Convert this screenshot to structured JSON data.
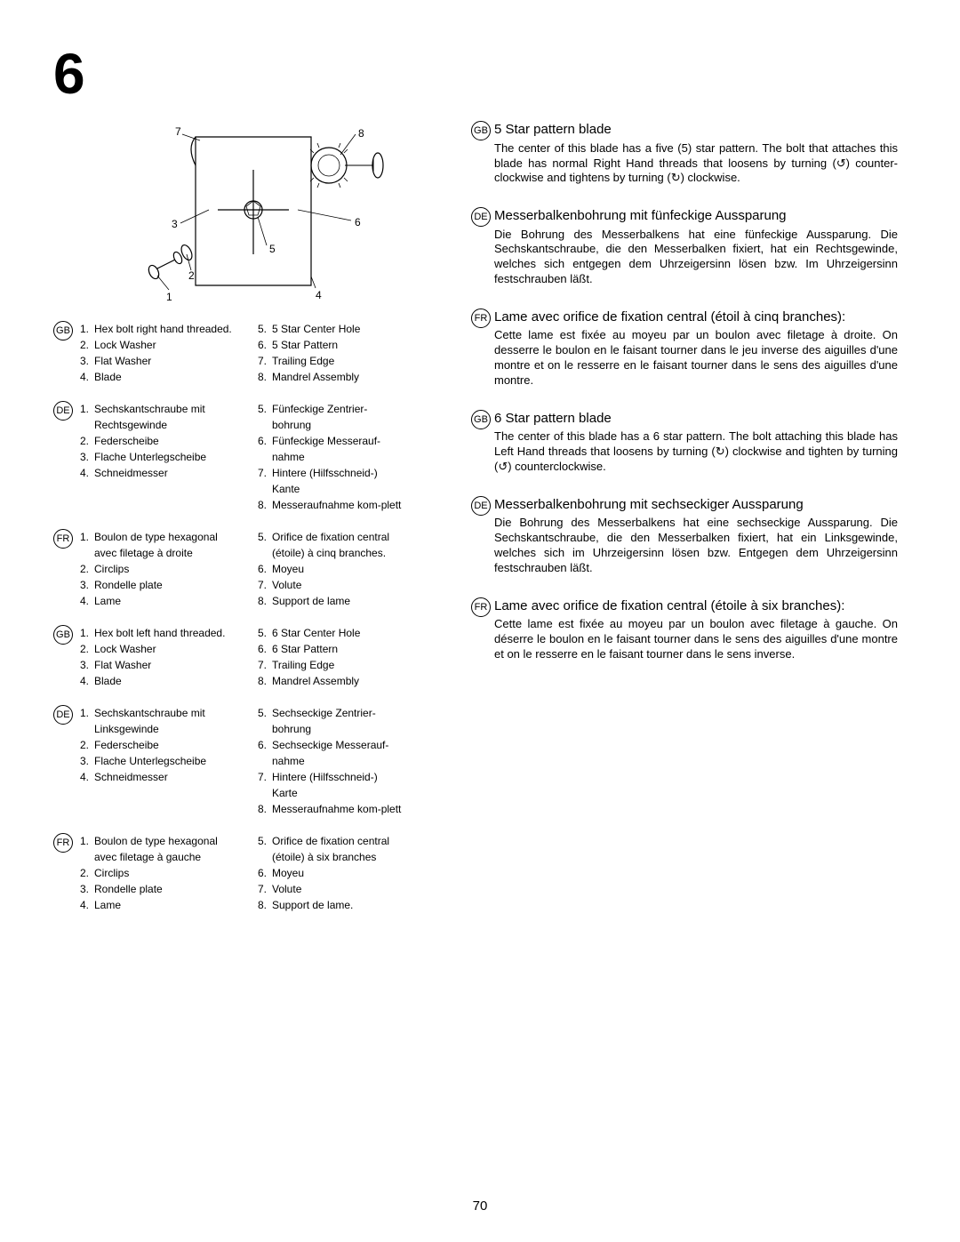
{
  "page_number": "70",
  "chapter_number": "6",
  "diagram": {
    "callouts": [
      "1",
      "2",
      "3",
      "4",
      "5",
      "6",
      "7",
      "8"
    ]
  },
  "parts_lists": [
    {
      "lang": "GB",
      "col_a": [
        {
          "n": "1.",
          "t": "Hex bolt right hand threaded."
        },
        {
          "n": "2.",
          "t": "Lock Washer"
        },
        {
          "n": "3.",
          "t": "Flat Washer"
        },
        {
          "n": "4.",
          "t": "Blade"
        }
      ],
      "col_b": [
        {
          "n": "5.",
          "t": "5 Star Center Hole"
        },
        {
          "n": "6.",
          "t": "5 Star Pattern"
        },
        {
          "n": "7.",
          "t": "Trailing Edge"
        },
        {
          "n": "8.",
          "t": "Mandrel Assembly"
        }
      ]
    },
    {
      "lang": "DE",
      "col_a": [
        {
          "n": "1.",
          "t": "Sechskantschraube mit Rechtsgewinde"
        },
        {
          "n": "2.",
          "t": "Federscheibe"
        },
        {
          "n": "3.",
          "t": "Flache Unterlegscheibe"
        },
        {
          "n": "4.",
          "t": "Schneidmesser"
        }
      ],
      "col_b": [
        {
          "n": "5.",
          "t": "Fünfeckige Zentrier-bohrung"
        },
        {
          "n": "6.",
          "t": "Fünfeckige Messerauf-nahme"
        },
        {
          "n": "7.",
          "t": "Hintere (Hilfsschneid-) Kante"
        },
        {
          "n": "8.",
          "t": "Messeraufnahme kom-plett"
        }
      ]
    },
    {
      "lang": "FR",
      "col_a": [
        {
          "n": "1.",
          "t": "Boulon de type hexagonal avec filetage à droite"
        },
        {
          "n": "2.",
          "t": "Circlips"
        },
        {
          "n": "3.",
          "t": "Rondelle plate"
        },
        {
          "n": "4.",
          "t": "Lame"
        }
      ],
      "col_b": [
        {
          "n": "5.",
          "t": "Orifice de fixation central (étoile) à cinq branches."
        },
        {
          "n": "6.",
          "t": "Moyeu"
        },
        {
          "n": "7.",
          "t": "Volute"
        },
        {
          "n": "8.",
          "t": "Support de lame"
        }
      ]
    },
    {
      "lang": "GB",
      "col_a": [
        {
          "n": "1.",
          "t": "Hex bolt left hand threaded."
        },
        {
          "n": "2.",
          "t": "Lock Washer"
        },
        {
          "n": "3.",
          "t": "Flat Washer"
        },
        {
          "n": "4.",
          "t": "Blade"
        }
      ],
      "col_b": [
        {
          "n": "5.",
          "t": "6 Star Center Hole"
        },
        {
          "n": "6.",
          "t": "6 Star Pattern"
        },
        {
          "n": "7.",
          "t": "Trailing Edge"
        },
        {
          "n": "8.",
          "t": "Mandrel Assembly"
        }
      ]
    },
    {
      "lang": "DE",
      "col_a": [
        {
          "n": "1.",
          "t": "Sechskantschraube mit Linksgewinde"
        },
        {
          "n": "2.",
          "t": "Federscheibe"
        },
        {
          "n": "3.",
          "t": "Flache Unterlegscheibe"
        },
        {
          "n": "4.",
          "t": "Schneidmesser"
        }
      ],
      "col_b": [
        {
          "n": "5.",
          "t": "Sechseckige Zentrier-bohrung"
        },
        {
          "n": "6.",
          "t": "Sechseckige Messerauf-nahme"
        },
        {
          "n": "7.",
          "t": "Hintere (Hilfsschneid-) Karte"
        },
        {
          "n": "8.",
          "t": "Messeraufnahme kom-plett"
        }
      ]
    },
    {
      "lang": "FR",
      "col_a": [
        {
          "n": "1.",
          "t": "Boulon de type hexagonal avec filetage à gauche"
        },
        {
          "n": "2.",
          "t": "Circlips"
        },
        {
          "n": "3.",
          "t": "Rondelle plate"
        },
        {
          "n": "4.",
          "t": "Lame"
        }
      ],
      "col_b": [
        {
          "n": "5.",
          "t": "Orifice de fixation central (étoile) à six branches"
        },
        {
          "n": "6.",
          "t": "Moyeu"
        },
        {
          "n": "7.",
          "t": "Volute"
        },
        {
          "n": "8.",
          "t": "Support de lame."
        }
      ]
    }
  ],
  "sections": [
    {
      "lang": "GB",
      "title": "5 Star pattern blade",
      "text": "The center of this blade has a five (5) star pattern. The bolt that attaches this blade has normal Right Hand threads that loosens by turning (↺) counter-clockwise and tightens by turning (↻) clockwise."
    },
    {
      "lang": "DE",
      "title": "Messerbalkenbohrung mit fünfeckige Aussparung",
      "text": "Die Bohrung des Messerbalkens hat eine fünfeckige Aussparung. Die Sechskantschraube, die den Messerbalken fixiert, hat ein Rechtsgewinde, welches sich entgegen dem Uhrzeigersinn lösen bzw. Im Uhrzeigersinn festschrauben läßt."
    },
    {
      "lang": "FR",
      "title": "Lame avec orifice de fixation central (étoil à cinq branches):",
      "text": "Cette lame est fixée au moyeu par un boulon avec filetage à droite. On desserre le boulon en le faisant tourner dans le jeu inverse des aiguilles d'une montre et on le resserre en le faisant tourner dans le sens des aiguilles d'une montre."
    },
    {
      "lang": "GB",
      "title": "6 Star pattern blade",
      "text": "The center of this blade has a 6 star pattern. The bolt attaching this blade has Left Hand threads that loosens by turning (↻) clockwise and tighten by turning (↺) counterclockwise."
    },
    {
      "lang": "DE",
      "title": "Messerbalkenbohrung mit sechseckiger Aussparung",
      "text": "Die Bohrung des Messerbalkens hat eine sechseckige Aussparung. Die Sechskantschraube, die den Messerbalken fixiert, hat ein  Linksgewinde, welches sich im Uhrzeigersinn lösen bzw. Entgegen dem Uhrzeigersinn festschrauben läßt."
    },
    {
      "lang": "FR",
      "title": "Lame avec orifice de fixation central (étoile à six branches):",
      "text": "Cette lame est fixée au moyeu par un boulon avec filetage à gauche. On déserre le boulon en le  faisant tourner dans le sens des aiguilles d'une montre et on le resserre en le faisant tourner dans le sens inverse."
    }
  ]
}
